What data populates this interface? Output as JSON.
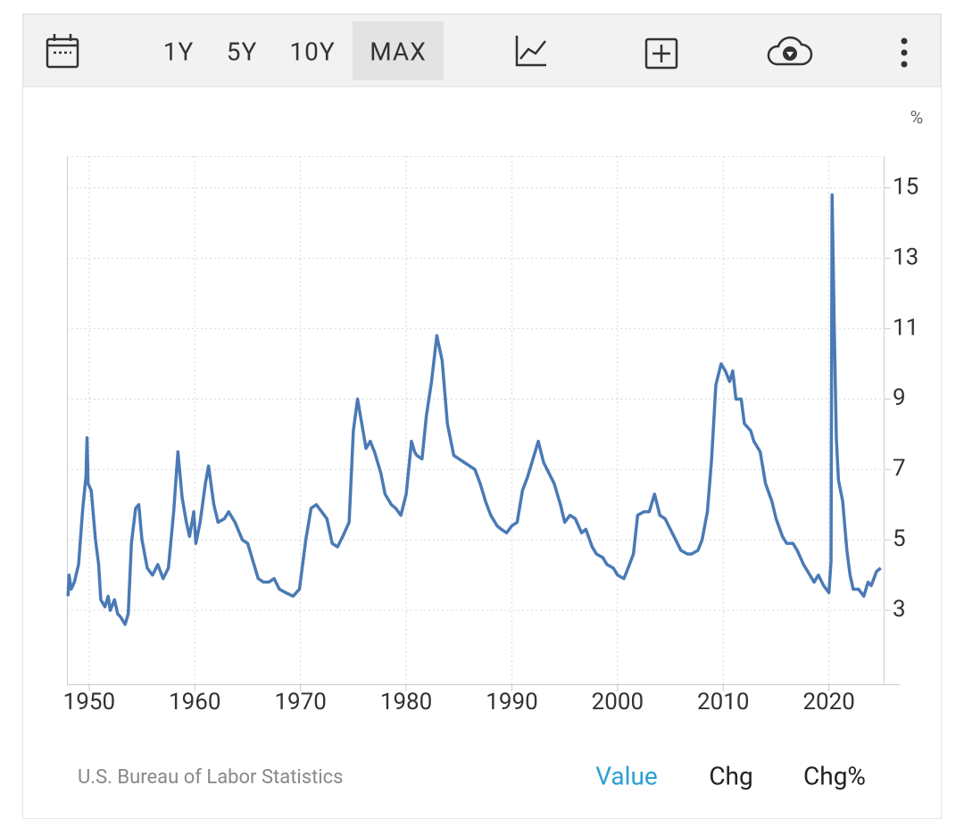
{
  "toolbar": {
    "ranges": [
      "1Y",
      "5Y",
      "10Y",
      "MAX"
    ]
  },
  "footer": {
    "source": "U.S. Bureau of Labor Statistics",
    "tabs": [
      "Value",
      "Chg",
      "Chg%"
    ]
  },
  "chart_data": {
    "type": "line",
    "y_unit": "%",
    "color": "#4a7ab5",
    "grid": true,
    "xlim": [
      1947.9,
      2026.7
    ],
    "xticks": [
      1950,
      1960,
      1970,
      1980,
      1990,
      2000,
      2010,
      2020
    ],
    "ylim": [
      0.9,
      15.9
    ],
    "yticks": [
      3,
      5,
      7,
      9,
      11,
      13,
      15
    ],
    "x": [
      1948.0,
      1948.1,
      1948.3,
      1948.6,
      1949.0,
      1949.4,
      1949.7,
      1949.8,
      1949.9,
      1950.2,
      1950.6,
      1950.9,
      1951.1,
      1951.5,
      1951.8,
      1952.0,
      1952.4,
      1952.7,
      1953.0,
      1953.4,
      1953.7,
      1954.0,
      1954.4,
      1954.7,
      1955.0,
      1955.5,
      1956.0,
      1956.5,
      1957.0,
      1957.5,
      1958.0,
      1958.4,
      1958.8,
      1959.2,
      1959.5,
      1959.9,
      1960.1,
      1960.5,
      1961.0,
      1961.3,
      1961.8,
      1962.2,
      1962.8,
      1963.2,
      1963.8,
      1964.5,
      1965.0,
      1965.5,
      1966.0,
      1966.5,
      1967.0,
      1967.5,
      1968.0,
      1968.6,
      1969.3,
      1969.9,
      1970.5,
      1971.0,
      1971.5,
      1972.0,
      1972.5,
      1973.0,
      1973.5,
      1974.0,
      1974.6,
      1975.0,
      1975.4,
      1975.8,
      1976.2,
      1976.6,
      1977.0,
      1977.6,
      1978.0,
      1978.6,
      1979.0,
      1979.5,
      1980.0,
      1980.5,
      1980.8,
      1981.0,
      1981.5,
      1981.9,
      1982.4,
      1982.9,
      1983.4,
      1983.9,
      1984.5,
      1985.0,
      1985.5,
      1986.0,
      1986.5,
      1987.0,
      1987.5,
      1988.0,
      1988.6,
      1989.0,
      1989.5,
      1990.0,
      1990.5,
      1991.0,
      1991.5,
      1992.0,
      1992.5,
      1993.0,
      1993.5,
      1994.0,
      1994.6,
      1995.0,
      1995.5,
      1996.0,
      1996.6,
      1997.0,
      1997.6,
      1998.0,
      1998.6,
      1999.0,
      1999.6,
      2000.0,
      2000.6,
      2001.0,
      2001.5,
      2001.9,
      2002.5,
      2003.0,
      2003.5,
      2004.0,
      2004.5,
      2005.0,
      2005.5,
      2006.0,
      2006.6,
      2007.0,
      2007.6,
      2008.0,
      2008.5,
      2008.9,
      2009.3,
      2009.8,
      2010.2,
      2010.6,
      2010.9,
      2011.2,
      2011.7,
      2012.0,
      2012.6,
      2012.9,
      2013.5,
      2014.0,
      2014.6,
      2015.0,
      2015.6,
      2016.0,
      2016.6,
      2017.0,
      2017.6,
      2018.0,
      2018.6,
      2019.0,
      2019.5,
      2020.0,
      2020.2,
      2020.3,
      2020.5,
      2020.7,
      2020.9,
      2021.3,
      2021.7,
      2022.0,
      2022.3,
      2022.8,
      2023.3,
      2023.7,
      2024.0,
      2024.5,
      2024.9
    ],
    "values": [
      3.4,
      4.0,
      3.6,
      3.8,
      4.3,
      5.9,
      6.8,
      7.9,
      6.6,
      6.4,
      5.0,
      4.3,
      3.3,
      3.1,
      3.4,
      3.0,
      3.3,
      2.9,
      2.8,
      2.6,
      2.9,
      4.9,
      5.9,
      6.0,
      5.0,
      4.2,
      4.0,
      4.3,
      3.9,
      4.2,
      5.8,
      7.5,
      6.2,
      5.5,
      5.1,
      5.8,
      4.9,
      5.5,
      6.6,
      7.1,
      6.0,
      5.5,
      5.6,
      5.8,
      5.5,
      5.0,
      4.9,
      4.4,
      3.9,
      3.8,
      3.8,
      3.9,
      3.6,
      3.5,
      3.4,
      3.6,
      5.0,
      5.9,
      6.0,
      5.8,
      5.6,
      4.9,
      4.8,
      5.1,
      5.5,
      8.1,
      9.0,
      8.3,
      7.6,
      7.8,
      7.5,
      6.9,
      6.3,
      6.0,
      5.9,
      5.7,
      6.3,
      7.8,
      7.5,
      7.4,
      7.3,
      8.5,
      9.5,
      10.8,
      10.1,
      8.3,
      7.4,
      7.3,
      7.2,
      7.1,
      7.0,
      6.6,
      6.1,
      5.7,
      5.4,
      5.3,
      5.2,
      5.4,
      5.5,
      6.4,
      6.8,
      7.3,
      7.8,
      7.2,
      6.9,
      6.6,
      6.0,
      5.5,
      5.7,
      5.6,
      5.2,
      5.3,
      4.8,
      4.6,
      4.5,
      4.3,
      4.2,
      4.0,
      3.9,
      4.2,
      4.6,
      5.7,
      5.8,
      5.8,
      6.3,
      5.7,
      5.6,
      5.3,
      5.0,
      4.7,
      4.6,
      4.6,
      4.7,
      5.0,
      5.8,
      7.3,
      9.4,
      10.0,
      9.8,
      9.5,
      9.8,
      9.0,
      9.0,
      8.3,
      8.1,
      7.8,
      7.5,
      6.6,
      6.1,
      5.6,
      5.1,
      4.9,
      4.9,
      4.7,
      4.3,
      4.1,
      3.8,
      4.0,
      3.7,
      3.5,
      4.4,
      14.8,
      11.1,
      7.9,
      6.7,
      6.1,
      4.7,
      4.0,
      3.6,
      3.6,
      3.4,
      3.8,
      3.7,
      4.1,
      4.2
    ]
  }
}
